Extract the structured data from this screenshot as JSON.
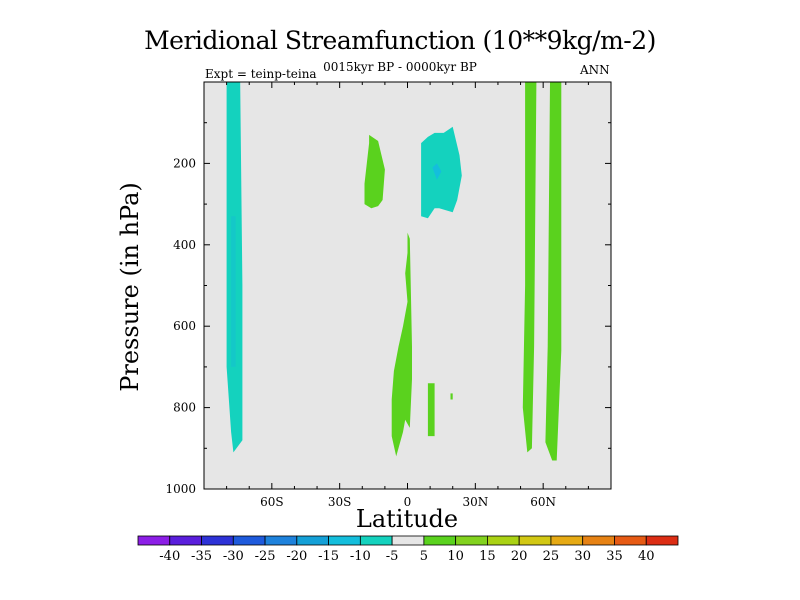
{
  "chart_data": {
    "type": "heatmap",
    "title": "Meridional Streamfunction (10**9kg/m-2)",
    "subtitle": "0015kyr BP - 0000kyr BP",
    "left_label": "Expt = teinp-teina",
    "right_label": "ANN",
    "xlabel": "Latitude",
    "ylabel": "Pressure (in hPa)",
    "xlim": [
      -90,
      90
    ],
    "ylim": [
      1000,
      0
    ],
    "x_ticks": [
      {
        "value": -60,
        "label": "60S"
      },
      {
        "value": -30,
        "label": "30S"
      },
      {
        "value": 0,
        "label": "0"
      },
      {
        "value": 30,
        "label": "30N"
      },
      {
        "value": 60,
        "label": "60N"
      }
    ],
    "y_ticks": [
      {
        "value": 200,
        "label": "200"
      },
      {
        "value": 400,
        "label": "400"
      },
      {
        "value": 600,
        "label": "600"
      },
      {
        "value": 800,
        "label": "800"
      },
      {
        "value": 1000,
        "label": "1000"
      }
    ],
    "background_color": "#e6e6e6",
    "colorbar": {
      "labels": [
        "-40",
        "-35",
        "-30",
        "-25",
        "-20",
        "-15",
        "-10",
        "-5",
        "5",
        "10",
        "15",
        "20",
        "25",
        "30",
        "35",
        "40"
      ],
      "colors": [
        "#8c1ee6",
        "#5a1edc",
        "#2d32d7",
        "#1e5adc",
        "#1e82dc",
        "#14a0d7",
        "#14bedc",
        "#14d2be",
        "#e6e6e6",
        "#5ad21e",
        "#82d21e",
        "#aad214",
        "#d2c814",
        "#e6aa14",
        "#e68214",
        "#e65a14",
        "#dc2d14"
      ]
    },
    "regions": [
      {
        "name": "sh-polar-negative",
        "level": "-10 to -5",
        "color": "#14d2be",
        "points": [
          [
            -80,
            0
          ],
          [
            -74,
            0
          ],
          [
            -74,
            5
          ],
          [
            -73,
            500
          ],
          [
            -73,
            880
          ],
          [
            -77,
            910
          ],
          [
            -78,
            860
          ],
          [
            -80,
            700
          ]
        ]
      },
      {
        "name": "sh-polar-core",
        "level": "-5 to -10",
        "color": "#14c8c8",
        "points": [
          [
            -78,
            330
          ],
          [
            -76,
            330
          ],
          [
            -76,
            700
          ],
          [
            -78,
            700
          ]
        ]
      },
      {
        "name": "sh-upper-positive",
        "level": "5 to 10",
        "color": "#5ad21e",
        "points": [
          [
            -17,
            130
          ],
          [
            -13,
            145
          ],
          [
            -10,
            215
          ],
          [
            -11,
            290
          ],
          [
            -13,
            305
          ],
          [
            -16,
            310
          ],
          [
            -19,
            300
          ],
          [
            -19,
            250
          ],
          [
            -18,
            200
          ],
          [
            -17,
            150
          ]
        ]
      },
      {
        "name": "nh-upper-negative",
        "level": "-5 to -10",
        "color": "#14d2be",
        "points": [
          [
            6,
            150
          ],
          [
            9,
            135
          ],
          [
            12,
            125
          ],
          [
            16,
            125
          ],
          [
            20,
            110
          ],
          [
            23,
            180
          ],
          [
            24,
            230
          ],
          [
            22,
            290
          ],
          [
            20,
            320
          ],
          [
            17,
            315
          ],
          [
            14,
            310
          ],
          [
            12,
            310
          ],
          [
            9,
            335
          ],
          [
            6,
            330
          ],
          [
            6,
            250
          ],
          [
            6,
            190
          ]
        ]
      },
      {
        "name": "nh-upper-negative-core",
        "level": "-10 to -15",
        "color": "#14bedc",
        "points": [
          [
            11,
            210
          ],
          [
            13,
            200
          ],
          [
            15,
            220
          ],
          [
            13,
            240
          ]
        ]
      },
      {
        "name": "sh-lower-positive",
        "level": "5 to 10",
        "color": "#5ad21e",
        "points": [
          [
            0,
            370
          ],
          [
            1,
            385
          ],
          [
            2,
            650
          ],
          [
            2,
            730
          ],
          [
            1,
            850
          ],
          [
            -1,
            830
          ],
          [
            -2,
            860
          ],
          [
            -5,
            920
          ],
          [
            -7,
            870
          ],
          [
            -7,
            780
          ],
          [
            -6,
            710
          ],
          [
            -4,
            650
          ],
          [
            -2,
            600
          ],
          [
            0,
            540
          ],
          [
            -1,
            470
          ],
          [
            0,
            420
          ]
        ]
      },
      {
        "name": "nh-lower-positive",
        "level": "5 to 10",
        "color": "#5ad21e",
        "points": [
          [
            9,
            740
          ],
          [
            12,
            740
          ],
          [
            12,
            870
          ],
          [
            9,
            870
          ]
        ]
      },
      {
        "name": "nh-small-positive",
        "level": "5 to 10",
        "color": "#5ad21e",
        "points": [
          [
            19,
            765
          ],
          [
            20,
            765
          ],
          [
            20,
            780
          ],
          [
            19,
            780
          ]
        ]
      },
      {
        "name": "nh-midlat-positive",
        "level": "5 to 10",
        "color": "#5ad21e",
        "points": [
          [
            52,
            0
          ],
          [
            57,
            0
          ],
          [
            56,
            650
          ],
          [
            55,
            900
          ],
          [
            53,
            910
          ],
          [
            51,
            800
          ],
          [
            52,
            500
          ]
        ]
      },
      {
        "name": "nh-polar-positive",
        "level": "5 to 10",
        "color": "#5ad21e",
        "points": [
          [
            63,
            0
          ],
          [
            68,
            0
          ],
          [
            68,
            660
          ],
          [
            66,
            930
          ],
          [
            64,
            930
          ],
          [
            61,
            885
          ],
          [
            62,
            650
          ]
        ]
      }
    ]
  }
}
